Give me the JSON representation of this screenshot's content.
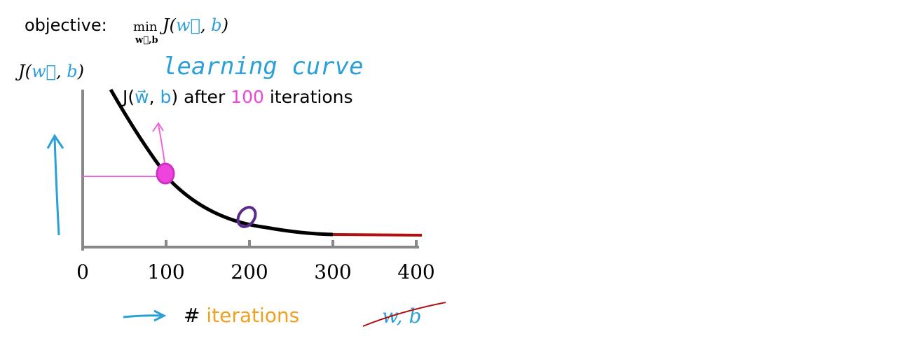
{
  "objective": {
    "label": "objective:",
    "operator": "min",
    "subscript": "w⃗,b",
    "expression": [
      {
        "text": "J(",
        "color": "#000000"
      },
      {
        "text": "w⃗",
        "color": "#2a9fd8"
      },
      {
        "text": ", ",
        "color": "#000000"
      },
      {
        "text": "b",
        "color": "#2a9fd8"
      },
      {
        "text": ")",
        "color": "#000000"
      }
    ]
  },
  "y_axis_label": [
    {
      "text": "J(",
      "color": "#000000"
    },
    {
      "text": "w⃗",
      "color": "#2a9fd8"
    },
    {
      "text": ", ",
      "color": "#000000"
    },
    {
      "text": "b",
      "color": "#2a9fd8"
    },
    {
      "text": ")",
      "color": "#000000"
    }
  ],
  "annotation": {
    "title": "learning curve",
    "caption": [
      {
        "text": "J(",
        "color": "#000000"
      },
      {
        "text": "w⃗",
        "color": "#2a9fd8"
      },
      {
        "text": ", ",
        "color": "#000000"
      },
      {
        "text": "b",
        "color": "#2a9fd8"
      },
      {
        "text": ") after ",
        "color": "#000000"
      },
      {
        "text": "100",
        "color": "#ee44dd"
      },
      {
        "text": " iterations",
        "color": "#000000"
      }
    ]
  },
  "x_ticks": [
    0,
    100,
    200,
    300,
    400
  ],
  "x_axis_label": [
    {
      "text": "# ",
      "color": "#000000"
    },
    {
      "text": "iterations",
      "color": "#f0a020"
    }
  ],
  "crossed_out": "w, b"
}
